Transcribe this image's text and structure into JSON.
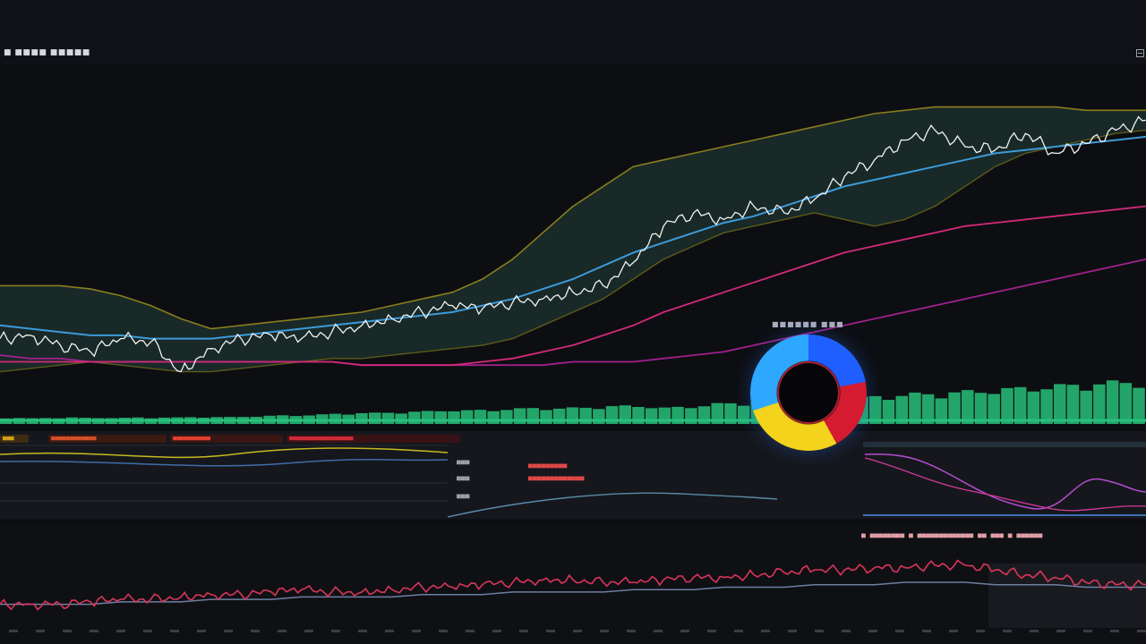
{
  "app": {
    "title": "■ ■■■■ ■■■■■"
  },
  "colors": {
    "price": "#f2f2f2",
    "ma_fast": "#3d9ad8",
    "ma_slow": "#d22a7a",
    "band": "#8a7d1c",
    "volume": "#28c07a",
    "background": "#0d0e12"
  },
  "indicator_strip": {
    "items": [
      {
        "label": "■■■",
        "color": "#d6a21a"
      },
      {
        "label": "■■■■■■■■■■■■",
        "color": "#d65028"
      },
      {
        "label": "■■■■■■■■■■",
        "color": "#e04030"
      },
      {
        "label": "■■■■■■■■■■■■■■■■■",
        "color": "#d02c38"
      }
    ]
  },
  "mid_panel": {
    "values": [
      "■■■",
      "■■■",
      "■■■",
      "■■■■■■■■■",
      "■■■■■■■■■■■■■"
    ]
  },
  "gauge": {
    "title": "■■■■■■ ■■■"
  },
  "right_panel": {
    "legend": "■ ■■■■■■■■ ■ ■■■■■■■■■■■■■ ■■ ■■■ ■ ■■■■■■"
  },
  "chart_data": [
    {
      "type": "line",
      "panel": "price",
      "series": [
        {
          "values": [
            52,
            53,
            50,
            48,
            52,
            51,
            42,
            49,
            52,
            53,
            52,
            54,
            56,
            58,
            60,
            62,
            61,
            63,
            64,
            66,
            68,
            75,
            86,
            90,
            88,
            92,
            90,
            94,
            101,
            106,
            112,
            115,
            110,
            109,
            114,
            108,
            111,
            115,
            118
          ]
        },
        {
          "values": [
            56,
            55,
            54,
            53,
            53,
            52,
            52,
            52,
            53,
            54,
            55,
            56,
            57,
            58,
            59,
            60,
            62,
            64,
            67,
            70,
            74,
            78,
            81,
            84,
            87,
            89,
            92,
            95,
            98,
            100,
            102,
            104,
            106,
            108,
            109,
            110,
            111,
            112,
            113
          ]
        },
        {
          "values": [
            45,
            45,
            45,
            45,
            45,
            45,
            45,
            45,
            45,
            45,
            45,
            45,
            44,
            44,
            44,
            44,
            45,
            46,
            48,
            50,
            53,
            56,
            60,
            63,
            66,
            69,
            72,
            75,
            78,
            80,
            82,
            84,
            86,
            87,
            88,
            89,
            90,
            91,
            92
          ]
        },
        {
          "values": [
            47,
            46,
            46,
            45,
            45,
            45,
            45,
            45,
            45,
            45,
            45,
            45,
            44,
            44,
            44,
            44,
            44,
            44,
            44,
            45,
            45,
            45,
            46,
            47,
            48,
            50,
            52,
            54,
            56,
            58,
            60,
            62,
            64,
            66,
            68,
            70,
            72,
            74,
            76
          ]
        }
      ],
      "bands": {
        "upper": [
          68,
          68,
          68,
          67,
          65,
          62,
          58,
          55,
          56,
          57,
          58,
          59,
          60,
          62,
          64,
          66,
          70,
          76,
          84,
          92,
          98,
          104,
          106,
          108,
          110,
          112,
          114,
          116,
          118,
          120,
          121,
          122,
          122,
          122,
          122,
          122,
          121,
          121,
          121
        ],
        "lower": [
          42,
          43,
          44,
          45,
          44,
          43,
          42,
          42,
          43,
          44,
          45,
          46,
          46,
          47,
          48,
          49,
          50,
          52,
          56,
          60,
          64,
          70,
          76,
          80,
          84,
          86,
          88,
          90,
          88,
          86,
          88,
          92,
          98,
          104,
          108,
          110,
          112,
          114,
          115
        ]
      },
      "ylim": [
        30,
        130
      ],
      "grid": false
    },
    {
      "type": "bar",
      "panel": "volume",
      "values": [
        6,
        6,
        5,
        6,
        6,
        7,
        6,
        6,
        6,
        6,
        7,
        6,
        7,
        7,
        8,
        8,
        8,
        8,
        9,
        10,
        11,
        12,
        12,
        13,
        14,
        16,
        17,
        18,
        18,
        19,
        20,
        21,
        22,
        24,
        25,
        24,
        25,
        26,
        27,
        28,
        30,
        31,
        29,
        30,
        32,
        33,
        34,
        35,
        36,
        33,
        30,
        32,
        35,
        36,
        40,
        42,
        45,
        47,
        45,
        42,
        44,
        46,
        48,
        50,
        52,
        55,
        58,
        60,
        62,
        64,
        65,
        66,
        68,
        70,
        72,
        74,
        76,
        78,
        80,
        82,
        84,
        86,
        88,
        90,
        92,
        94,
        96
      ],
      "ylim": [
        0,
        100
      ],
      "grid": false
    },
    {
      "type": "line",
      "panel": "oscillator",
      "series": [
        {
          "values": [
            6,
            6,
            6,
            7,
            8,
            8,
            9,
            10,
            10,
            11,
            12,
            11,
            11,
            12,
            13,
            13,
            14,
            15,
            16,
            16,
            15,
            15,
            16,
            17,
            17,
            18,
            19,
            20,
            20,
            21,
            21,
            22,
            22,
            20,
            18,
            17,
            15,
            14,
            14
          ]
        },
        {
          "values": [
            6,
            6,
            6,
            6,
            7,
            7,
            7,
            8,
            8,
            8,
            9,
            9,
            9,
            9,
            10,
            10,
            10,
            11,
            11,
            11,
            11,
            12,
            12,
            12,
            13,
            13,
            13,
            14,
            14,
            14,
            15,
            15,
            15,
            14,
            14,
            14,
            13,
            13,
            13
          ]
        }
      ],
      "ylim": [
        0,
        30
      ],
      "grid": false
    }
  ]
}
